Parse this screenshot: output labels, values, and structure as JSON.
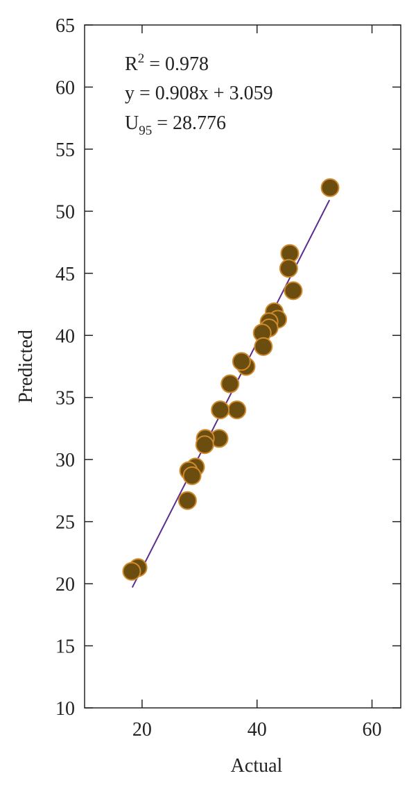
{
  "chart_data": {
    "type": "scatter",
    "xlabel": "Actual",
    "ylabel": "Predicted",
    "xlim": [
      10,
      65
    ],
    "ylim": [
      10,
      65
    ],
    "xticks": [
      20,
      40,
      60
    ],
    "yticks": [
      10,
      15,
      20,
      25,
      30,
      35,
      40,
      45,
      50,
      55,
      60,
      65
    ],
    "color": "#6b4d10",
    "edgecolor": "#d08a2c",
    "x": [
      52.7,
      45.7,
      45.5,
      46.3,
      43.0,
      43.6,
      42.1,
      42.1,
      40.9,
      41.1,
      38.1,
      37.3,
      35.3,
      36.5,
      33.6,
      33.4,
      31.0,
      30.9,
      29.3,
      28.1,
      28.7,
      27.9,
      19.3,
      18.2
    ],
    "y": [
      51.9,
      46.6,
      45.4,
      43.6,
      41.9,
      41.3,
      41.1,
      40.6,
      40.2,
      39.1,
      37.5,
      37.9,
      36.1,
      34.0,
      34.0,
      31.7,
      31.7,
      31.2,
      29.4,
      29.1,
      28.7,
      26.7,
      21.3,
      21.0
    ],
    "fit_line": {
      "x": [
        18.3,
        52.6
      ],
      "y": [
        19.7,
        50.9
      ],
      "color": "#5b2d8e"
    },
    "annotations": [
      [
        "R",
        "2",
        " = 0.978"
      ],
      [
        "y = 0.908x + 3.059"
      ],
      [
        "U",
        "95",
        " = 28.776"
      ]
    ]
  }
}
